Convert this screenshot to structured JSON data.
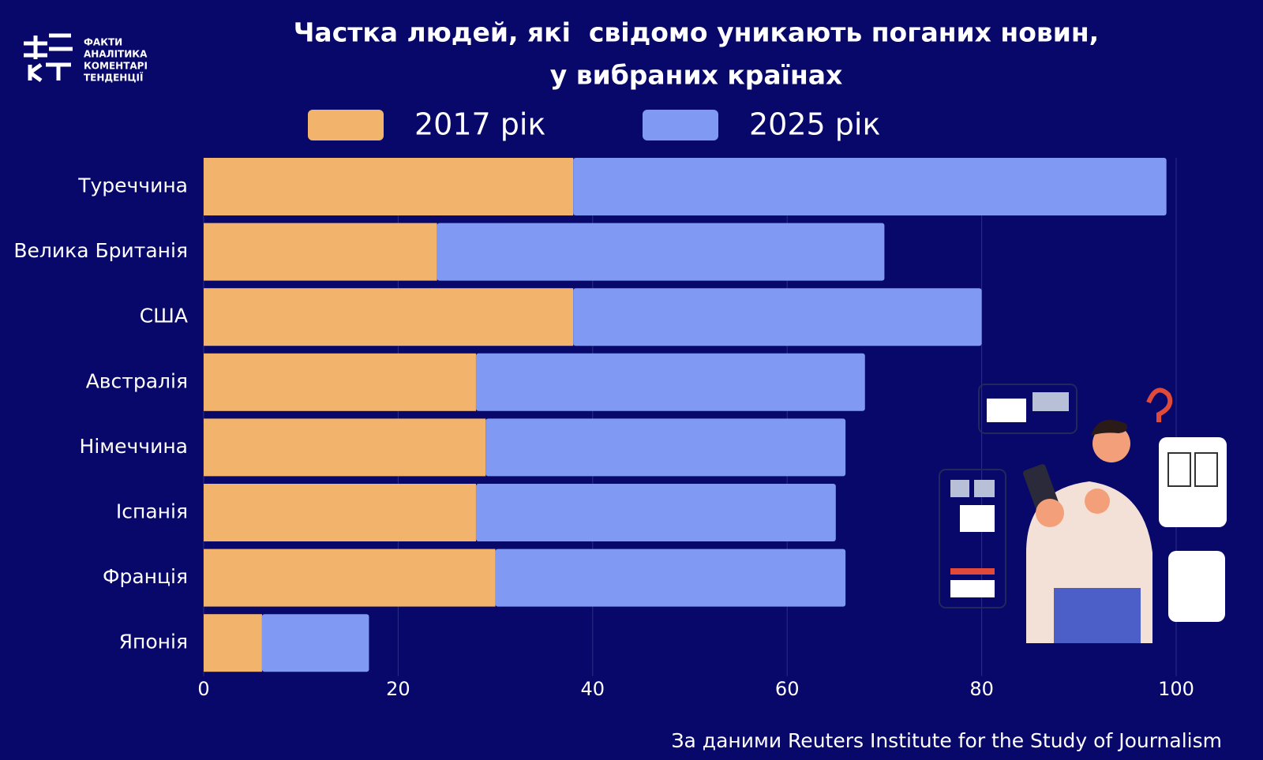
{
  "logo": {
    "lines": [
      "ФАКТИ",
      "АНАЛІТИКА",
      "КОМЕНТАРІ",
      "ТЕНДЕНЦІЇ"
    ]
  },
  "chart_data": {
    "type": "stacked-bar-horizontal",
    "title": [
      "Частка людей, які  свідомо уникають поганих новин,",
      "у вибраних країнах"
    ],
    "categories": [
      "Туреччина",
      "Велика Британія",
      "США",
      "Австралія",
      "Німеччина",
      "Іспанія",
      "Франція",
      "Японія"
    ],
    "series": [
      {
        "name": "2017 рік",
        "color": "#f2b46c",
        "values": [
          38,
          24,
          38,
          28,
          29,
          28,
          30,
          6
        ]
      },
      {
        "name": "2025 рік",
        "color": "#8099f3",
        "values": [
          61,
          46,
          42,
          40,
          37,
          37,
          36,
          11
        ]
      }
    ],
    "xlim": [
      0,
      100
    ],
    "xticks": [
      0,
      20,
      40,
      60,
      80,
      100
    ],
    "grid": true,
    "source": "За даними Reuters Institute for the Study of Journalism"
  }
}
